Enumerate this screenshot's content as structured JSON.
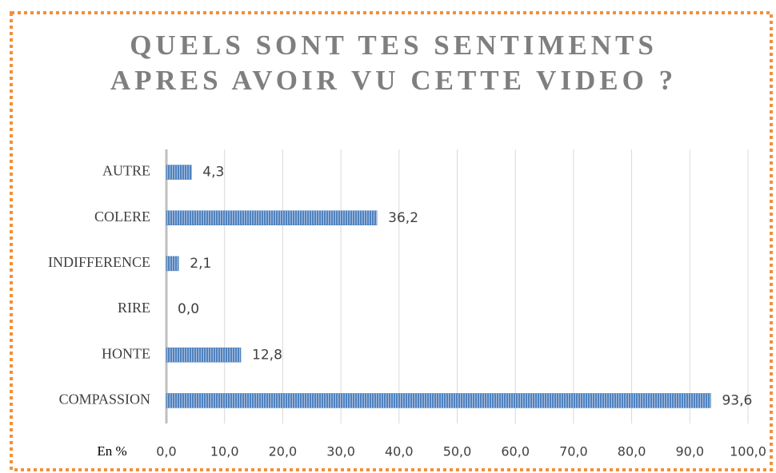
{
  "chart_data": {
    "type": "bar",
    "orientation": "horizontal",
    "title": [
      "QUELS SONT TES SENTIMENTS",
      "APRES AVOIR VU CETTE VIDEO ?"
    ],
    "x_label": "En %",
    "categories": [
      "AUTRE",
      "COLERE",
      "INDIFFERENCE",
      "RIRE",
      "HONTE",
      "COMPASSION"
    ],
    "values": [
      4.3,
      36.2,
      2.1,
      0.0,
      12.8,
      93.6
    ],
    "value_labels": [
      "4,3",
      "36,2",
      "2,1",
      "0,0",
      "12,8",
      "93,6"
    ],
    "color": "#4f81bd",
    "xlim": [
      0,
      100
    ],
    "xticks": [
      {
        "value": 0,
        "label": "0,0"
      },
      {
        "value": 10,
        "label": "10,0"
      },
      {
        "value": 20,
        "label": "20,0"
      },
      {
        "value": 30,
        "label": "30,0"
      },
      {
        "value": 40,
        "label": "40,0"
      },
      {
        "value": 50,
        "label": "50,0"
      },
      {
        "value": 60,
        "label": "60,0"
      },
      {
        "value": 70,
        "label": "70,0"
      },
      {
        "value": 80,
        "label": "80,0"
      },
      {
        "value": 90,
        "label": "90,0"
      },
      {
        "value": 100,
        "label": "100,0"
      }
    ],
    "grid": true
  }
}
